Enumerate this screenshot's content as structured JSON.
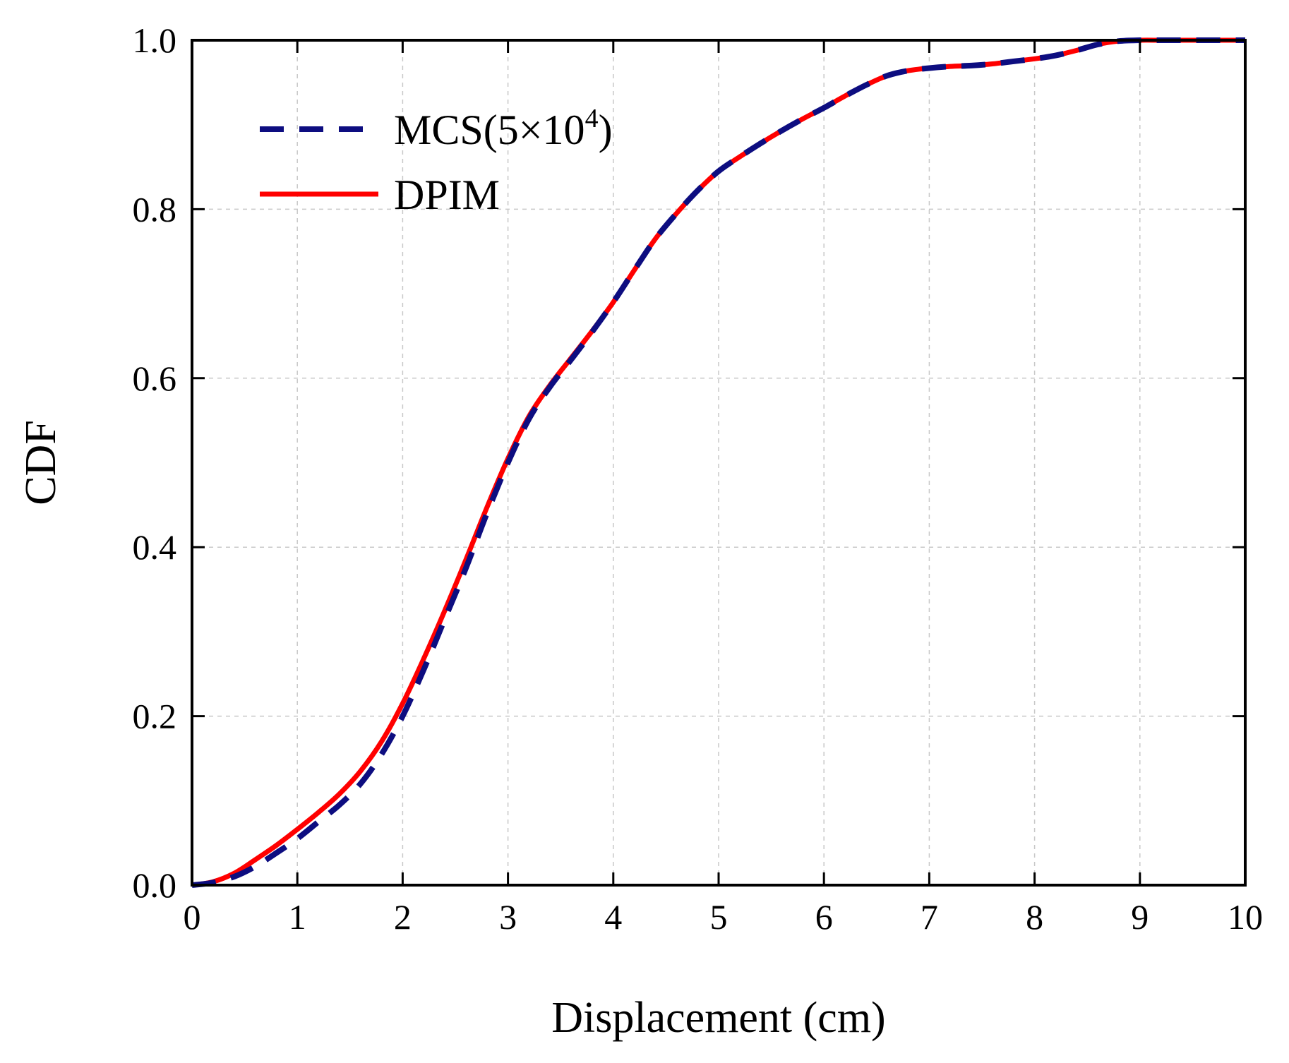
{
  "chart_data": {
    "type": "line",
    "title": "",
    "xlabel": "Displacement (cm)",
    "ylabel": "CDF",
    "xlim": [
      0,
      10
    ],
    "ylim": [
      0,
      1
    ],
    "xticks": [
      "0",
      "1",
      "2",
      "3",
      "4",
      "5",
      "6",
      "7",
      "8",
      "9",
      "10"
    ],
    "yticks": [
      "0.0",
      "0.2",
      "0.4",
      "0.6",
      "0.8",
      "1.0"
    ],
    "grid": true,
    "legend_position": "top-left",
    "series": [
      {
        "name": "MCS(5×10^4)",
        "legend_main": "MCS(5×10",
        "legend_sup": "4",
        "legend_tail": ")",
        "color": "#0d0d80",
        "style": "dashed",
        "x": [
          0,
          0.2,
          0.4,
          0.6,
          0.8,
          1.0,
          1.2,
          1.4,
          1.6,
          1.8,
          2.0,
          2.2,
          2.4,
          2.6,
          2.8,
          3.0,
          3.2,
          3.4,
          3.6,
          3.8,
          4.0,
          4.2,
          4.4,
          4.6,
          4.8,
          5.0,
          5.2,
          5.4,
          5.6,
          5.8,
          6.0,
          6.2,
          6.4,
          6.6,
          6.8,
          7.0,
          7.2,
          7.4,
          7.6,
          7.8,
          8.0,
          8.2,
          8.4,
          8.6,
          8.8,
          9.0,
          9.2,
          9.4,
          9.6,
          9.8,
          10.0
        ],
        "y": [
          0.0,
          0.003,
          0.01,
          0.022,
          0.038,
          0.055,
          0.075,
          0.095,
          0.12,
          0.155,
          0.2,
          0.255,
          0.315,
          0.375,
          0.44,
          0.5,
          0.552,
          0.59,
          0.622,
          0.655,
          0.69,
          0.728,
          0.765,
          0.795,
          0.822,
          0.845,
          0.862,
          0.878,
          0.893,
          0.907,
          0.92,
          0.934,
          0.947,
          0.958,
          0.964,
          0.967,
          0.969,
          0.97,
          0.972,
          0.975,
          0.978,
          0.982,
          0.988,
          0.995,
          0.999,
          1.0,
          1.0,
          1.0,
          1.0,
          1.0,
          1.0
        ]
      },
      {
        "name": "DPIM",
        "legend_main": "DPIM",
        "legend_sup": "",
        "legend_tail": "",
        "color": "#ff0000",
        "style": "solid",
        "x": [
          0,
          0.2,
          0.4,
          0.6,
          0.8,
          1.0,
          1.2,
          1.4,
          1.6,
          1.8,
          2.0,
          2.2,
          2.4,
          2.6,
          2.8,
          3.0,
          3.2,
          3.4,
          3.6,
          3.8,
          4.0,
          4.2,
          4.4,
          4.6,
          4.8,
          5.0,
          5.2,
          5.4,
          5.6,
          5.8,
          6.0,
          6.2,
          6.4,
          6.6,
          6.8,
          7.0,
          7.2,
          7.4,
          7.6,
          7.8,
          8.0,
          8.2,
          8.4,
          8.6,
          8.8,
          9.0,
          9.2,
          9.4,
          9.6,
          9.8,
          10.0
        ],
        "y": [
          0.0,
          0.004,
          0.014,
          0.03,
          0.047,
          0.066,
          0.086,
          0.108,
          0.135,
          0.17,
          0.215,
          0.268,
          0.325,
          0.385,
          0.447,
          0.505,
          0.555,
          0.592,
          0.624,
          0.656,
          0.69,
          0.728,
          0.765,
          0.795,
          0.822,
          0.845,
          0.862,
          0.878,
          0.893,
          0.907,
          0.92,
          0.934,
          0.947,
          0.958,
          0.964,
          0.967,
          0.969,
          0.97,
          0.972,
          0.975,
          0.978,
          0.982,
          0.988,
          0.995,
          0.999,
          1.0,
          1.0,
          1.0,
          1.0,
          1.0,
          1.0
        ]
      }
    ]
  }
}
